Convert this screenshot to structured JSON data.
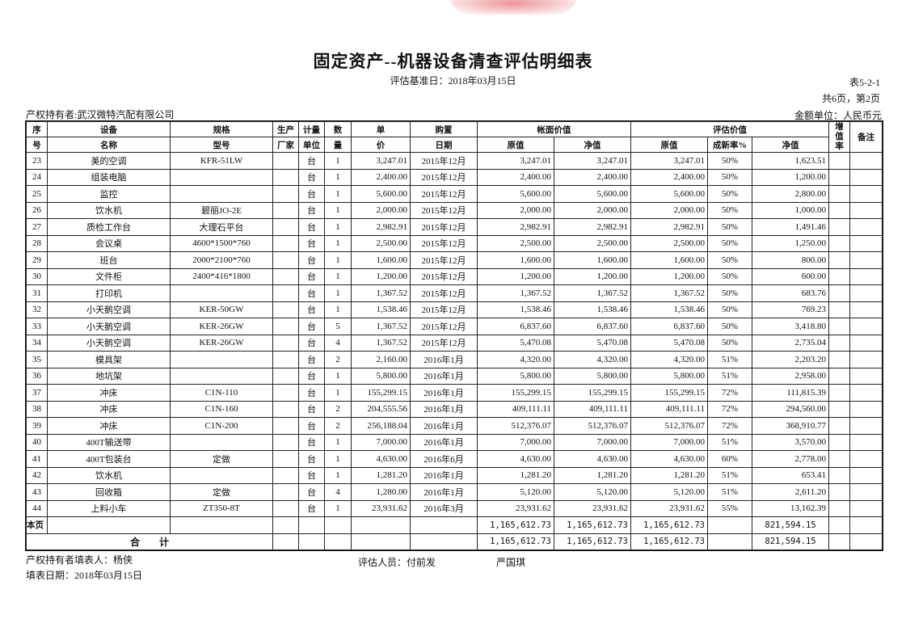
{
  "title": "固定资产--机器设备清查评估明细表",
  "base_date": "评估基准日：2018年03月15日",
  "table_no": "表5-2-1",
  "page_info": "共6页，第2页",
  "owner": "产权持有者:武汉微特汽配有限公司",
  "currency": "金额单位：人民币元",
  "headers": {
    "seq": [
      "序",
      "号"
    ],
    "name": [
      "设备",
      "名称"
    ],
    "spec": [
      "规格",
      "型号"
    ],
    "maker": [
      "生产",
      "厂家"
    ],
    "unit": [
      "计量",
      "单位"
    ],
    "qty": [
      "数",
      "量"
    ],
    "price": [
      "单",
      "价"
    ],
    "date": [
      "购置",
      "日期"
    ],
    "book": "帐面价值",
    "book_orig": "原值",
    "book_net": "净值",
    "eval": "评估价值",
    "eval_orig": "原值",
    "eval_rate": "成新率%",
    "eval_net": "净值",
    "increase": "增值率",
    "remark": "备注"
  },
  "rows": [
    [
      "23",
      "美的空调",
      "KFR-51LW",
      "",
      "台",
      "1",
      "3,247.01",
      "2015年12月",
      "3,247.01",
      "3,247.01",
      "3,247.01",
      "50%",
      "1,623.51"
    ],
    [
      "24",
      "组装电脑",
      "",
      "",
      "台",
      "1",
      "2,400.00",
      "2015年12月",
      "2,400.00",
      "2,400.00",
      "2,400.00",
      "50%",
      "1,200.00"
    ],
    [
      "25",
      "监控",
      "",
      "",
      "台",
      "1",
      "5,600.00",
      "2015年12月",
      "5,600.00",
      "5,600.00",
      "5,600.00",
      "50%",
      "2,800.00"
    ],
    [
      "26",
      "饮水机",
      "碧丽JO-2E",
      "",
      "台",
      "1",
      "2,000.00",
      "2015年12月",
      "2,000.00",
      "2,000.00",
      "2,000.00",
      "50%",
      "1,000.00"
    ],
    [
      "27",
      "质检工作台",
      "大理石平台",
      "",
      "台",
      "1",
      "2,982.91",
      "2015年12月",
      "2,982.91",
      "2,982.91",
      "2,982.91",
      "50%",
      "1,491.46"
    ],
    [
      "28",
      "会议桌",
      "4600*1500*760",
      "",
      "台",
      "1",
      "2,500.00",
      "2015年12月",
      "2,500.00",
      "2,500.00",
      "2,500.00",
      "50%",
      "1,250.00"
    ],
    [
      "29",
      "班台",
      "2000*2100*760",
      "",
      "台",
      "1",
      "1,600.00",
      "2015年12月",
      "1,600.00",
      "1,600.00",
      "1,600.00",
      "50%",
      "800.00"
    ],
    [
      "30",
      "文件柜",
      "2400*416*1800",
      "",
      "台",
      "1",
      "1,200.00",
      "2015年12月",
      "1,200.00",
      "1,200.00",
      "1,200.00",
      "50%",
      "600.00"
    ],
    [
      "31",
      "打印机",
      "",
      "",
      "台",
      "1",
      "1,367.52",
      "2015年12月",
      "1,367.52",
      "1,367.52",
      "1,367.52",
      "50%",
      "683.76"
    ],
    [
      "32",
      "小天鹅空调",
      "KER-50GW",
      "",
      "台",
      "1",
      "1,538.46",
      "2015年12月",
      "1,538.46",
      "1,538.46",
      "1,538.46",
      "50%",
      "769.23"
    ],
    [
      "33",
      "小天鹅空调",
      "KER-26GW",
      "",
      "台",
      "5",
      "1,367.52",
      "2015年12月",
      "6,837.60",
      "6,837.60",
      "6,837.60",
      "50%",
      "3,418.80"
    ],
    [
      "34",
      "小天鹅空调",
      "KER-26GW",
      "",
      "台",
      "4",
      "1,367.52",
      "2015年12月",
      "5,470.08",
      "5,470.08",
      "5,470.08",
      "50%",
      "2,735.04"
    ],
    [
      "35",
      "模具架",
      "",
      "",
      "台",
      "2",
      "2,160.00",
      "2016年1月",
      "4,320.00",
      "4,320.00",
      "4,320.00",
      "51%",
      "2,203.20"
    ],
    [
      "36",
      "地坑架",
      "",
      "",
      "台",
      "1",
      "5,800.00",
      "2016年1月",
      "5,800.00",
      "5,800.00",
      "5,800.00",
      "51%",
      "2,958.00"
    ],
    [
      "37",
      "冲床",
      "C1N-110",
      "",
      "台",
      "1",
      "155,299.15",
      "2016年1月",
      "155,299.15",
      "155,299.15",
      "155,299.15",
      "72%",
      "111,815.39"
    ],
    [
      "38",
      "冲床",
      "C1N-160",
      "",
      "台",
      "2",
      "204,555.56",
      "2016年1月",
      "409,111.11",
      "409,111.11",
      "409,111.11",
      "72%",
      "294,560.00"
    ],
    [
      "39",
      "冲床",
      "C1N-200",
      "",
      "台",
      "2",
      "256,188.04",
      "2016年1月",
      "512,376.07",
      "512,376.07",
      "512,376.07",
      "72%",
      "368,910.77"
    ],
    [
      "40",
      "400T输送带",
      "",
      "",
      "台",
      "1",
      "7,000.00",
      "2016年1月",
      "7,000.00",
      "7,000.00",
      "7,000.00",
      "51%",
      "3,570.00"
    ],
    [
      "41",
      "400T包装台",
      "定做",
      "",
      "台",
      "1",
      "4,630.00",
      "2016年6月",
      "4,630.00",
      "4,630.00",
      "4,630.00",
      "60%",
      "2,778.00"
    ],
    [
      "42",
      "饮水机",
      "",
      "",
      "台",
      "1",
      "1,281.20",
      "2016年1月",
      "1,281.20",
      "1,281.20",
      "1,281.20",
      "51%",
      "653.41"
    ],
    [
      "43",
      "回收箱",
      "定做",
      "",
      "台",
      "4",
      "1,280.00",
      "2016年1月",
      "5,120.00",
      "5,120.00",
      "5,120.00",
      "51%",
      "2,611.20"
    ],
    [
      "44",
      "上料小车",
      "ZT350-8T",
      "",
      "台",
      "1",
      "23,931.62",
      "2016年3月",
      "23,931.62",
      "23,931.62",
      "23,931.62",
      "55%",
      "13,162.39"
    ]
  ],
  "page_total": {
    "label": "本页",
    "book_orig": "1,165,612.73",
    "book_net": "1,165,612.73",
    "eval_orig": "1,165,612.73",
    "eval_net": "821,594.15"
  },
  "grand_total": {
    "label": "合　　计",
    "book_orig": "1,165,612.73",
    "book_net": "1,165,612.73",
    "eval_orig": "1,165,612.73",
    "eval_net": "821,594.15"
  },
  "footer": {
    "filler": "产权持有者填表人：杨侠",
    "fill_date": "填表日期：2018年03月15日",
    "appraiser": "评估人员：付前发",
    "appraiser2": "严国琪"
  },
  "colors": {
    "stamp": "#dc3c46"
  }
}
